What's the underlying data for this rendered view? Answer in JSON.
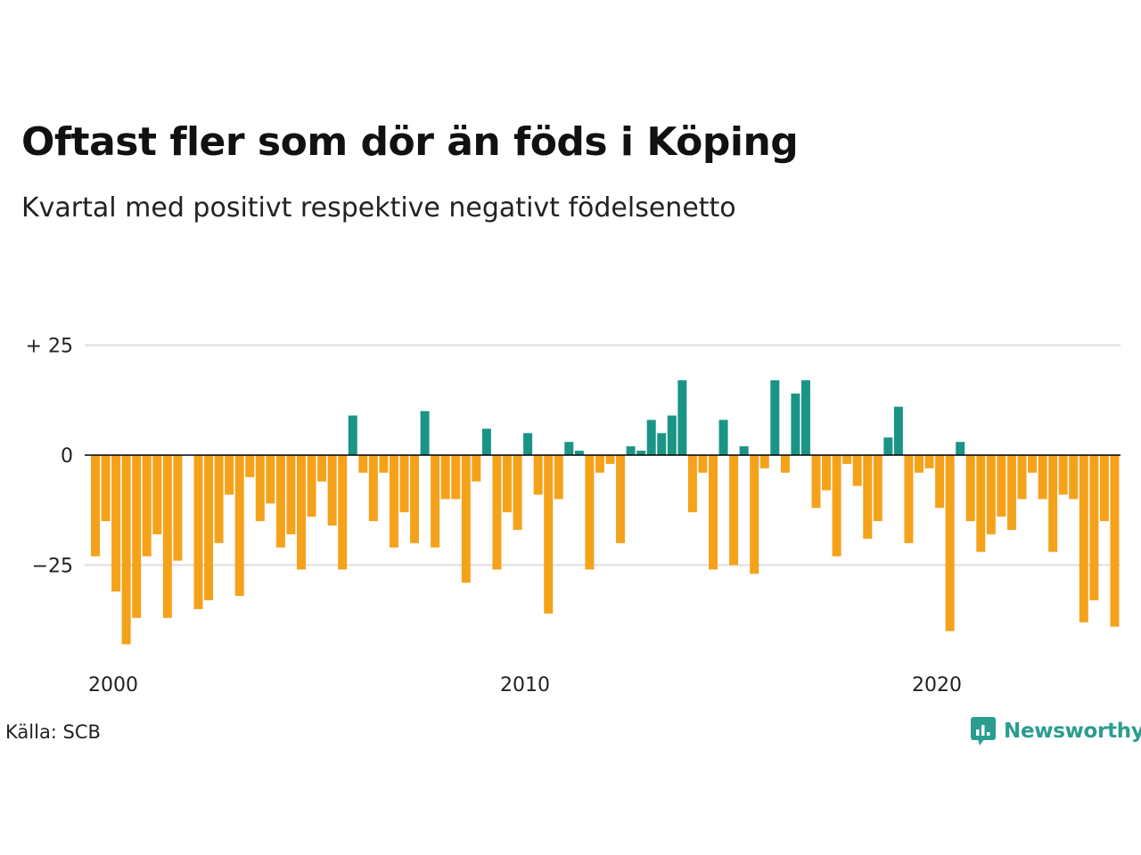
{
  "title": "Oftast fler som dör än föds i Köping",
  "subtitle": "Kvartal med positivt respektive negativt födelsenetto",
  "source": "Källa: SCB",
  "logo_text": "Newsworthy",
  "colors": {
    "positive": "#1a9485",
    "negative": "#f5a21b",
    "grid": "#dddddd",
    "zero": "#000000",
    "logo": "#2a9d8f"
  },
  "chart_data": {
    "type": "bar",
    "x_start": 2000,
    "periods_per_year": 4,
    "ylim": [
      -45,
      27
    ],
    "yticks": [
      25,
      0,
      -25
    ],
    "ytick_labels": [
      "+ 25",
      "0",
      "−25"
    ],
    "xticks": [
      "2000",
      "2010",
      "2020"
    ],
    "grid": true,
    "values": [
      -23,
      -15,
      -31,
      -43,
      -37,
      -23,
      -18,
      -37,
      -24,
      0,
      -35,
      -33,
      -20,
      -9,
      -32,
      -5,
      -15,
      -11,
      -21,
      -18,
      -26,
      -14,
      -6,
      -16,
      -26,
      9,
      -4,
      -15,
      -4,
      -21,
      -13,
      -20,
      10,
      -21,
      -10,
      -10,
      -29,
      -6,
      6,
      -26,
      -13,
      -17,
      5,
      -9,
      -36,
      -10,
      3,
      1,
      -26,
      -4,
      -2,
      -20,
      2,
      1,
      8,
      5,
      9,
      17,
      -13,
      -4,
      -26,
      8,
      -25,
      2,
      -27,
      -3,
      17,
      -4,
      14,
      17,
      -12,
      -8,
      -23,
      -2,
      -7,
      -19,
      -15,
      4,
      11,
      -20,
      -4,
      -3,
      -12,
      -40,
      3,
      -15,
      -22,
      -18,
      -14,
      -17,
      -10,
      -4,
      -10,
      -22,
      -9,
      -10,
      -38,
      -33,
      -15,
      -39
    ]
  }
}
